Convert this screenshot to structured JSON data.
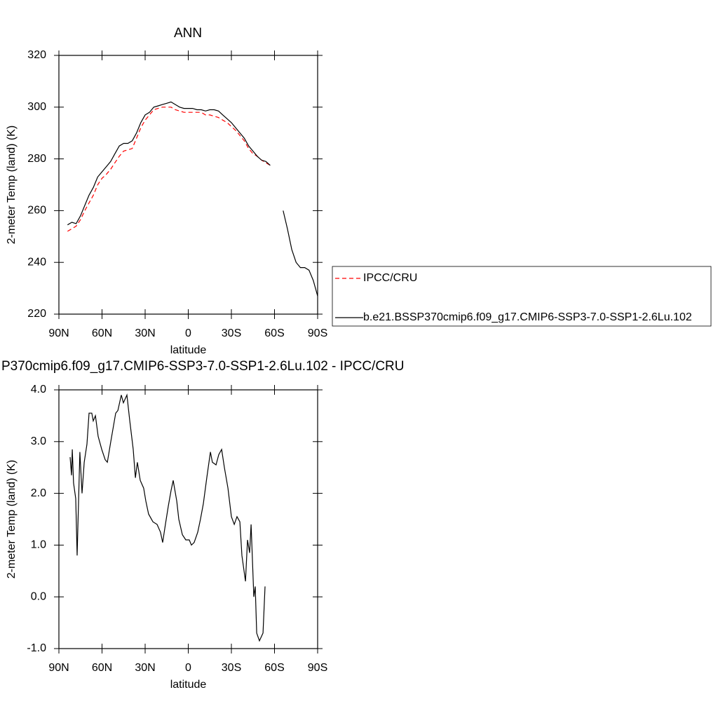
{
  "chart_data": [
    {
      "type": "line",
      "title": "ANN",
      "xlabel": "latitude",
      "ylabel": "2-meter Temp (land) (K)",
      "x": [
        84,
        81,
        78,
        75,
        72,
        69,
        66,
        63,
        60,
        57,
        54,
        51,
        48,
        45,
        42,
        39,
        36,
        33,
        30,
        27,
        24,
        21,
        18,
        15,
        12,
        9,
        6,
        3,
        0,
        -3,
        -6,
        -9,
        -12,
        -15,
        -18,
        -21,
        -24,
        -27,
        -30,
        -33,
        -36,
        -39,
        -42,
        -45,
        -48,
        -51,
        -54,
        -57,
        -60,
        -63,
        -66,
        -69,
        -72,
        -75,
        -78,
        -81,
        -84,
        -87,
        -90
      ],
      "series": [
        {
          "name": "IPCC/CRU",
          "color": "#ff0000",
          "dash": true,
          "values": [
            252,
            253,
            254,
            256.5,
            260,
            263,
            266,
            270,
            272.5,
            274,
            276,
            278.5,
            281,
            283,
            283.5,
            284,
            288,
            292,
            295,
            297,
            299,
            299.5,
            300,
            300,
            300,
            299,
            298.5,
            298,
            298,
            298,
            298,
            298,
            297,
            297,
            296.5,
            296,
            295,
            294,
            292.5,
            291,
            289,
            287,
            284,
            282,
            281,
            279.5,
            278.5,
            277.5,
            null,
            null,
            null,
            null,
            null,
            null,
            null,
            null,
            null,
            null,
            null
          ]
        },
        {
          "name": "b.e21.BSSP370cmip6.f09_g17.CMIP6-SSP3-7.0-SSP1-2.6Lu.102",
          "color": "#000000",
          "dash": false,
          "values": [
            254.5,
            255.5,
            255,
            258,
            262,
            266,
            269,
            273,
            275,
            277,
            279,
            282,
            285,
            286,
            286,
            287,
            290,
            294,
            297,
            298,
            300,
            300.5,
            301,
            301.5,
            302,
            301,
            300,
            299.5,
            299.5,
            299.5,
            299,
            299,
            298.5,
            299,
            299,
            298.5,
            297,
            295.5,
            294,
            292,
            290,
            288,
            285,
            283,
            281,
            279.5,
            279,
            277.5,
            null,
            null,
            260,
            253,
            245,
            240,
            238,
            238,
            237,
            233,
            227
          ]
        }
      ],
      "xlim": [
        90,
        -90
      ],
      "xticks": [
        {
          "value": 90,
          "label": "90N"
        },
        {
          "value": 60,
          "label": "60N"
        },
        {
          "value": 30,
          "label": "30N"
        },
        0,
        {
          "value": -30,
          "label": "30S"
        },
        {
          "value": -60,
          "label": "60S"
        },
        {
          "value": -90,
          "label": "90S"
        }
      ],
      "ylim": [
        220,
        320
      ],
      "yticks": [
        220,
        240,
        260,
        280,
        300,
        320
      ],
      "legend": "right"
    },
    {
      "type": "line",
      "title": "P370cmip6.f09_g17.CMIP6-SSP3-7.0-SSP1-2.6Lu.102 - IPCC/CRU",
      "xlabel": "latitude",
      "ylabel": "2-meter Temp (land) (K)",
      "x": [
        82.2,
        81.2,
        80.7,
        79.8,
        78.3,
        77.3,
        75.4,
        73.9,
        72.4,
        70.5,
        69.0,
        67.1,
        66.1,
        64.6,
        62.7,
        60.2,
        57.8,
        56.3,
        53.9,
        50.5,
        49.0,
        46.6,
        45.1,
        42.7,
        40.7,
        38.3,
        36.8,
        35.4,
        33.4,
        31.0,
        29.5,
        27.6,
        24.6,
        21.7,
        19.3,
        17.8,
        15.9,
        13.9,
        12.0,
        10.5,
        8.0,
        6.6,
        4.1,
        1.7,
        -0.7,
        -2.2,
        -4.1,
        -6.6,
        -8.5,
        -10.5,
        -12.9,
        -15.4,
        -16.8,
        -19.3,
        -21.2,
        -23.2,
        -25.1,
        -27.6,
        -30.0,
        -32.0,
        -33.9,
        -35.9,
        -37.3,
        -39.8,
        -41.2,
        -42.7,
        -43.7,
        -45.6,
        -46.6,
        -47.6,
        -49.5,
        -52.0,
        -53.4
      ],
      "values": [
        2.7,
        2.35,
        2.85,
        2.2,
        1.9,
        0.8,
        2.8,
        2.0,
        2.6,
        2.95,
        3.55,
        3.55,
        3.4,
        3.5,
        3.1,
        2.85,
        2.65,
        2.6,
        3.0,
        3.55,
        3.6,
        3.9,
        3.75,
        3.9,
        3.4,
        2.85,
        2.3,
        2.6,
        2.25,
        2.1,
        1.85,
        1.6,
        1.45,
        1.4,
        1.25,
        1.05,
        1.4,
        1.75,
        2.05,
        2.25,
        1.85,
        1.5,
        1.2,
        1.1,
        1.1,
        1.0,
        1.05,
        1.25,
        1.5,
        1.8,
        2.3,
        2.8,
        2.6,
        2.55,
        2.75,
        2.85,
        2.5,
        2.1,
        1.55,
        1.4,
        1.55,
        1.45,
        0.8,
        0.3,
        1.1,
        0.85,
        1.4,
        0.0,
        0.2,
        -0.7,
        -0.85,
        -0.7,
        0.2
      ],
      "color": "#000000",
      "xlim": [
        90,
        -90
      ],
      "xticks": [
        {
          "value": 90,
          "label": "90N"
        },
        {
          "value": 60,
          "label": "60N"
        },
        {
          "value": 30,
          "label": "30N"
        },
        0,
        {
          "value": -30,
          "label": "30S"
        },
        {
          "value": -60,
          "label": "60S"
        },
        {
          "value": -90,
          "label": "90S"
        }
      ],
      "ylim": [
        -1,
        4
      ],
      "yticks": [
        {
          "value": -1,
          "label": "-1.0"
        },
        {
          "value": 0,
          "label": "0.0"
        },
        {
          "value": 1,
          "label": "1.0"
        },
        {
          "value": 2,
          "label": "2.0"
        },
        {
          "value": 3,
          "label": "3.0"
        },
        {
          "value": 4,
          "label": "4.0"
        }
      ]
    }
  ]
}
